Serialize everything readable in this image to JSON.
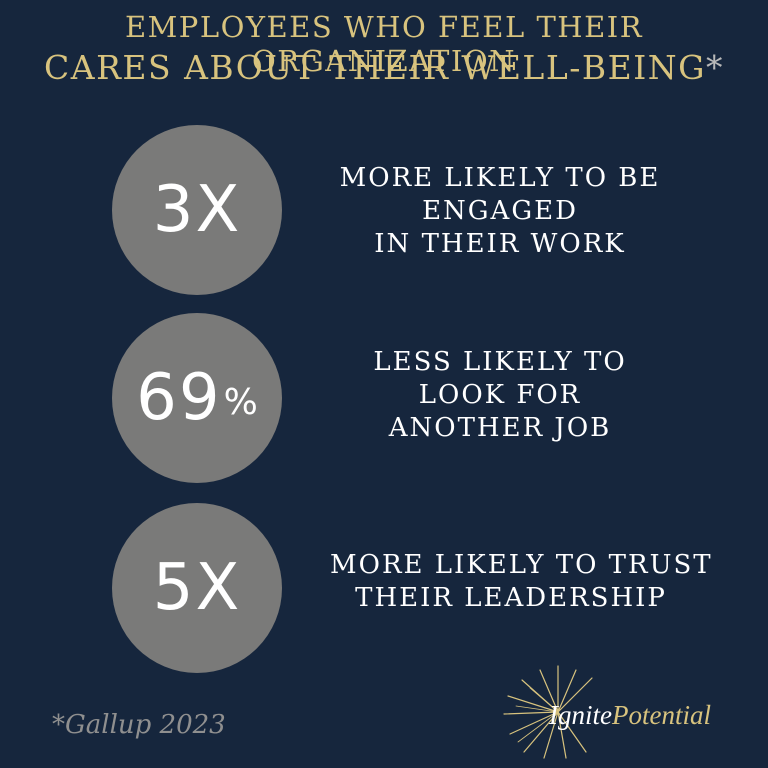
{
  "title": {
    "line1": "EMPLOYEES WHO FEEL THEIR ORGANIZATION",
    "line2": "CARES ABOUT THEIR WELL-BEING",
    "marker": "*"
  },
  "stats": [
    {
      "value": "3X",
      "suffix": "",
      "lines": [
        "MORE LIKELY TO BE",
        "ENGAGED",
        "IN THEIR WORK"
      ]
    },
    {
      "value": "69",
      "suffix": "%",
      "lines": [
        "LESS LIKELY TO",
        "LOOK FOR",
        "ANOTHER JOB"
      ]
    },
    {
      "value": "5X",
      "suffix": "",
      "lines": [
        "MORE LIKELY TO TRUST",
        "THEIR LEADERSHIP"
      ]
    }
  ],
  "source": "*Gallup 2023",
  "logo": {
    "word1": "Ignite",
    "word2": "Potential"
  },
  "colors": {
    "background": "#16263d",
    "accent": "#d8c37e",
    "circle": "#7a7a79"
  }
}
